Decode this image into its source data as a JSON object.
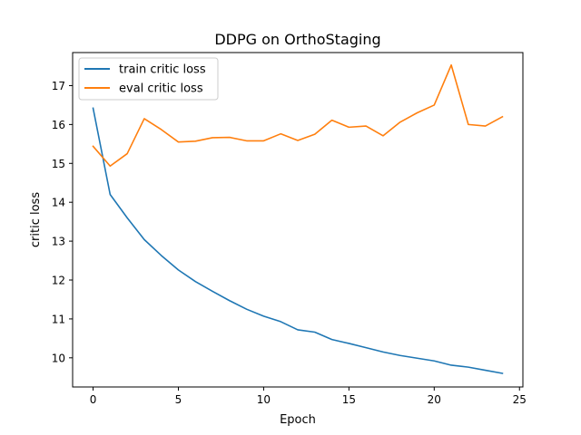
{
  "chart_data": {
    "type": "line",
    "title": "DDPG on OrthoStaging",
    "xlabel": "Epoch",
    "ylabel": "critic loss",
    "xlim": [
      -1.2,
      25.2
    ],
    "ylim": [
      9.25,
      17.85
    ],
    "xticks": [
      0,
      5,
      10,
      15,
      20,
      25
    ],
    "yticks": [
      10,
      11,
      12,
      13,
      14,
      15,
      16,
      17
    ],
    "grid": false,
    "legend_position": "upper-left",
    "x": [
      0,
      1,
      2,
      3,
      4,
      5,
      6,
      7,
      8,
      9,
      10,
      11,
      12,
      13,
      14,
      15,
      16,
      17,
      18,
      19,
      20,
      21,
      22,
      23,
      24
    ],
    "series": [
      {
        "name": "train critic loss",
        "color": "#1f77b4",
        "values": [
          16.42,
          14.2,
          13.6,
          13.04,
          12.63,
          12.26,
          11.96,
          11.71,
          11.47,
          11.25,
          11.07,
          10.93,
          10.72,
          10.66,
          10.47,
          10.37,
          10.26,
          10.15,
          10.06,
          9.99,
          9.92,
          9.81,
          9.76,
          9.68,
          9.6
        ]
      },
      {
        "name": "eval critic loss",
        "color": "#ff7f0e",
        "values": [
          15.44,
          14.93,
          15.25,
          16.15,
          15.87,
          15.55,
          15.57,
          15.66,
          15.67,
          15.58,
          15.58,
          15.76,
          15.59,
          15.75,
          16.11,
          15.93,
          15.96,
          15.71,
          16.06,
          16.3,
          16.5,
          17.53,
          16.0,
          15.96,
          16.2
        ]
      }
    ]
  }
}
